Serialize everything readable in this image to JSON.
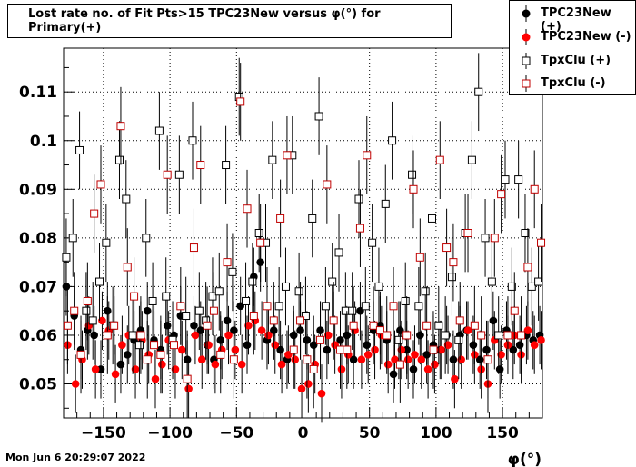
{
  "title": "Lost rate no. of Fit Pts>15 TPC23New versus φ(°) for Primary(+)",
  "timestamp": "Mon Jun  6 20:29:07 2022",
  "xlabel": "φ(°)",
  "colors": {
    "black": "#000000",
    "red": "#ff0000",
    "darkred": "#c00000"
  },
  "chart_data": {
    "type": "scatter",
    "xlim": [
      -180,
      180
    ],
    "ylim": [
      0.043,
      0.119
    ],
    "xticks": [
      -150,
      -100,
      -50,
      0,
      50,
      100,
      150
    ],
    "xtick_labels": [
      "−150",
      "−100",
      "−50",
      "0",
      "50",
      "100",
      "150"
    ],
    "yticks": [
      0.05,
      0.06,
      0.07,
      0.08,
      0.09,
      0.1,
      0.11
    ],
    "ytick_labels": [
      "0.05",
      "0.06",
      "0.07",
      "0.08",
      "0.09",
      "0.1",
      "0.11"
    ],
    "grid": true,
    "legend_position": "top-right",
    "series": [
      {
        "name": "TPC23New (+)",
        "marker": "filled-circle",
        "color": "#000000",
        "x": [
          -178,
          -172,
          -167,
          -162,
          -157,
          -152,
          -147,
          -142,
          -137,
          -132,
          -127,
          -122,
          -117,
          -112,
          -107,
          -102,
          -97,
          -92,
          -87,
          -82,
          -77,
          -72,
          -67,
          -62,
          -57,
          -52,
          -47,
          -42,
          -37,
          -32,
          -27,
          -22,
          -17,
          -12,
          -7,
          -2,
          3,
          8,
          13,
          18,
          23,
          28,
          33,
          38,
          43,
          48,
          53,
          58,
          63,
          68,
          73,
          78,
          83,
          88,
          93,
          98,
          103,
          108,
          113,
          118,
          123,
          128,
          133,
          138,
          143,
          148,
          153,
          158,
          163,
          168,
          173,
          178
        ],
        "y": [
          0.07,
          0.064,
          0.057,
          0.061,
          0.06,
          0.053,
          0.065,
          0.062,
          0.054,
          0.056,
          0.059,
          0.061,
          0.065,
          0.059,
          0.057,
          0.062,
          0.06,
          0.064,
          0.055,
          0.062,
          0.061,
          0.058,
          0.055,
          0.059,
          0.063,
          0.061,
          0.066,
          0.058,
          0.072,
          0.075,
          0.059,
          0.061,
          0.057,
          0.055,
          0.06,
          0.061,
          0.059,
          0.058,
          0.061,
          0.057,
          0.063,
          0.059,
          0.06,
          0.055,
          0.065,
          0.058,
          0.061,
          0.062,
          0.059,
          0.052,
          0.061,
          0.057,
          0.053,
          0.06,
          0.056,
          0.058,
          0.057,
          0.06,
          0.055,
          0.06,
          0.061,
          0.058,
          0.055,
          0.057,
          0.063,
          0.053,
          0.061,
          0.057,
          0.058,
          0.06,
          0.059,
          0.06
        ],
        "err": [
          0.006,
          0.006,
          0.006,
          0.006,
          0.006,
          0.006,
          0.006,
          0.006,
          0.006,
          0.006,
          0.006,
          0.006,
          0.006,
          0.006,
          0.006,
          0.006,
          0.006,
          0.006,
          0.006,
          0.006,
          0.006,
          0.006,
          0.006,
          0.006,
          0.006,
          0.006,
          0.006,
          0.006,
          0.006,
          0.006,
          0.006,
          0.006,
          0.006,
          0.006,
          0.006,
          0.006,
          0.006,
          0.006,
          0.006,
          0.006,
          0.006,
          0.006,
          0.006,
          0.006,
          0.006,
          0.006,
          0.006,
          0.006,
          0.006,
          0.006,
          0.006,
          0.006,
          0.006,
          0.006,
          0.006,
          0.006,
          0.006,
          0.006,
          0.006,
          0.006,
          0.006,
          0.006,
          0.006,
          0.006,
          0.006,
          0.006,
          0.006,
          0.006,
          0.006,
          0.006,
          0.006,
          0.006
        ]
      },
      {
        "name": "TPC23New (-)",
        "marker": "filled-circle",
        "color": "#ff0000",
        "x": [
          -177,
          -171,
          -166,
          -161,
          -156,
          -151,
          -146,
          -141,
          -136,
          -131,
          -126,
          -121,
          -116,
          -111,
          -106,
          -101,
          -96,
          -91,
          -86,
          -81,
          -76,
          -71,
          -66,
          -61,
          -56,
          -51,
          -46,
          -41,
          -36,
          -31,
          -26,
          -21,
          -16,
          -11,
          -6,
          -1,
          4,
          9,
          14,
          19,
          24,
          29,
          34,
          39,
          44,
          49,
          54,
          59,
          64,
          69,
          74,
          79,
          84,
          89,
          94,
          99,
          104,
          109,
          114,
          119,
          124,
          129,
          134,
          139,
          144,
          149,
          154,
          159,
          164,
          169,
          174,
          179
        ],
        "y": [
          0.058,
          0.05,
          0.055,
          0.062,
          0.053,
          0.063,
          0.061,
          0.052,
          0.058,
          0.06,
          0.053,
          0.059,
          0.056,
          0.051,
          0.054,
          0.059,
          0.053,
          0.057,
          0.049,
          0.06,
          0.055,
          0.058,
          0.054,
          0.057,
          0.06,
          0.057,
          0.054,
          0.062,
          0.063,
          0.061,
          0.06,
          0.058,
          0.054,
          0.056,
          0.055,
          0.049,
          0.05,
          0.054,
          0.048,
          0.06,
          0.058,
          0.053,
          0.056,
          0.061,
          0.055,
          0.056,
          0.057,
          0.06,
          0.054,
          0.055,
          0.057,
          0.055,
          0.056,
          0.055,
          0.053,
          0.054,
          0.057,
          0.058,
          0.051,
          0.055,
          0.061,
          0.056,
          0.053,
          0.05,
          0.059,
          0.056,
          0.058,
          0.06,
          0.056,
          0.061,
          0.058,
          0.059
        ],
        "err": [
          0.006,
          0.006,
          0.006,
          0.006,
          0.006,
          0.006,
          0.006,
          0.006,
          0.006,
          0.006,
          0.006,
          0.006,
          0.006,
          0.006,
          0.006,
          0.006,
          0.006,
          0.006,
          0.006,
          0.006,
          0.006,
          0.006,
          0.006,
          0.006,
          0.006,
          0.006,
          0.006,
          0.006,
          0.006,
          0.006,
          0.006,
          0.006,
          0.006,
          0.006,
          0.006,
          0.006,
          0.006,
          0.006,
          0.006,
          0.006,
          0.006,
          0.006,
          0.006,
          0.006,
          0.006,
          0.006,
          0.006,
          0.006,
          0.006,
          0.006,
          0.006,
          0.006,
          0.006,
          0.006,
          0.006,
          0.006,
          0.006,
          0.006,
          0.006,
          0.006,
          0.006,
          0.006,
          0.006,
          0.006,
          0.006,
          0.006,
          0.006,
          0.006,
          0.006,
          0.006,
          0.006,
          0.006
        ]
      },
      {
        "name": "TpxClu (+)",
        "marker": "open-square",
        "color": "#000000",
        "x": [
          -178,
          -173,
          -168,
          -163,
          -158,
          -153,
          -148,
          -143,
          -138,
          -133,
          -128,
          -123,
          -118,
          -113,
          -108,
          -103,
          -98,
          -93,
          -88,
          -83,
          -78,
          -73,
          -68,
          -63,
          -58,
          -53,
          -48,
          -43,
          -38,
          -33,
          -28,
          -23,
          -18,
          -13,
          -8,
          -3,
          2,
          7,
          12,
          17,
          22,
          27,
          32,
          37,
          42,
          47,
          52,
          57,
          62,
          67,
          72,
          77,
          82,
          87,
          92,
          97,
          102,
          107,
          112,
          117,
          122,
          127,
          132,
          137,
          142,
          147,
          152,
          157,
          162,
          167,
          172,
          177
        ],
        "y": [
          0.076,
          0.08,
          0.098,
          0.065,
          0.063,
          0.071,
          0.079,
          0.062,
          0.096,
          0.088,
          0.06,
          0.058,
          0.08,
          0.067,
          0.102,
          0.068,
          0.059,
          0.093,
          0.064,
          0.1,
          0.065,
          0.063,
          0.068,
          0.069,
          0.095,
          0.073,
          0.109,
          0.067,
          0.071,
          0.081,
          0.079,
          0.096,
          0.066,
          0.07,
          0.097,
          0.069,
          0.064,
          0.084,
          0.105,
          0.066,
          0.071,
          0.077,
          0.065,
          0.065,
          0.088,
          0.066,
          0.079,
          0.07,
          0.087,
          0.1,
          0.059,
          0.067,
          0.093,
          0.066,
          0.069,
          0.084,
          0.062,
          0.06,
          0.072,
          0.059,
          0.081,
          0.096,
          0.11,
          0.08,
          0.071,
          0.06,
          0.092,
          0.07,
          0.092,
          0.081,
          0.07,
          0.071
        ],
        "err": [
          0.008,
          0.008,
          0.008,
          0.008,
          0.008,
          0.008,
          0.008,
          0.008,
          0.008,
          0.008,
          0.008,
          0.008,
          0.008,
          0.008,
          0.008,
          0.008,
          0.008,
          0.008,
          0.008,
          0.008,
          0.008,
          0.008,
          0.008,
          0.008,
          0.008,
          0.008,
          0.008,
          0.008,
          0.008,
          0.008,
          0.008,
          0.008,
          0.008,
          0.008,
          0.008,
          0.008,
          0.008,
          0.008,
          0.008,
          0.008,
          0.008,
          0.008,
          0.008,
          0.008,
          0.008,
          0.008,
          0.008,
          0.008,
          0.008,
          0.008,
          0.008,
          0.008,
          0.008,
          0.008,
          0.008,
          0.008,
          0.008,
          0.008,
          0.008,
          0.008,
          0.008,
          0.008,
          0.008,
          0.008,
          0.008,
          0.008,
          0.008,
          0.008,
          0.008,
          0.008,
          0.008,
          0.008
        ]
      },
      {
        "name": "TpxClu (-)",
        "marker": "open-square",
        "color": "#c00000",
        "x": [
          -177,
          -172,
          -167,
          -162,
          -157,
          -152,
          -147,
          -142,
          -137,
          -132,
          -127,
          -122,
          -117,
          -112,
          -107,
          -102,
          -97,
          -92,
          -87,
          -82,
          -77,
          -72,
          -67,
          -62,
          -57,
          -52,
          -47,
          -42,
          -37,
          -32,
          -27,
          -22,
          -17,
          -12,
          -7,
          -2,
          3,
          8,
          13,
          18,
          23,
          28,
          33,
          38,
          43,
          48,
          53,
          58,
          63,
          68,
          73,
          78,
          83,
          88,
          93,
          98,
          103,
          108,
          113,
          118,
          124,
          129,
          134,
          139,
          144,
          149,
          154,
          159,
          164,
          169,
          174,
          179
        ],
        "y": [
          0.062,
          0.065,
          0.056,
          0.067,
          0.085,
          0.091,
          0.06,
          0.062,
          0.103,
          0.074,
          0.068,
          0.06,
          0.055,
          0.058,
          0.056,
          0.093,
          0.058,
          0.066,
          0.051,
          0.078,
          0.095,
          0.062,
          0.065,
          0.056,
          0.075,
          0.055,
          0.108,
          0.086,
          0.064,
          0.079,
          0.066,
          0.063,
          0.084,
          0.097,
          0.057,
          0.063,
          0.055,
          0.053,
          0.059,
          0.091,
          0.063,
          0.057,
          0.057,
          0.062,
          0.082,
          0.097,
          0.062,
          0.061,
          0.06,
          0.066,
          0.054,
          0.06,
          0.09,
          0.076,
          0.062,
          0.057,
          0.096,
          0.078,
          0.075,
          0.063,
          0.081,
          0.062,
          0.06,
          0.055,
          0.08,
          0.089,
          0.06,
          0.065,
          0.06,
          0.074,
          0.09,
          0.079
        ],
        "err": [
          0.008,
          0.008,
          0.008,
          0.008,
          0.008,
          0.008,
          0.008,
          0.008,
          0.008,
          0.008,
          0.008,
          0.008,
          0.008,
          0.008,
          0.008,
          0.008,
          0.008,
          0.008,
          0.008,
          0.008,
          0.008,
          0.008,
          0.008,
          0.008,
          0.008,
          0.008,
          0.008,
          0.008,
          0.008,
          0.008,
          0.008,
          0.008,
          0.008,
          0.008,
          0.008,
          0.008,
          0.008,
          0.008,
          0.008,
          0.008,
          0.008,
          0.008,
          0.008,
          0.008,
          0.008,
          0.008,
          0.008,
          0.008,
          0.008,
          0.008,
          0.008,
          0.008,
          0.008,
          0.008,
          0.008,
          0.008,
          0.008,
          0.008,
          0.008,
          0.008,
          0.008,
          0.008,
          0.008,
          0.008,
          0.008,
          0.008,
          0.008,
          0.008,
          0.008,
          0.008,
          0.008,
          0.008
        ]
      }
    ]
  }
}
